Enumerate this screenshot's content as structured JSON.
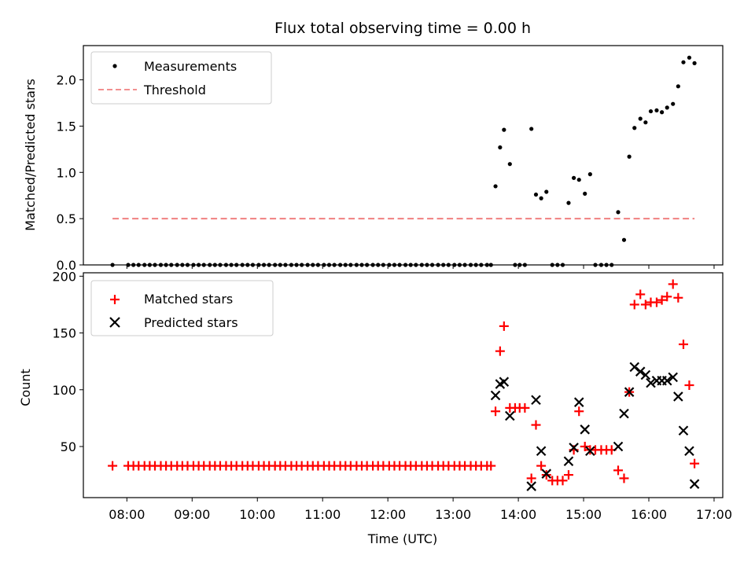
{
  "chart_data": [
    {
      "type": "scatter",
      "title": "Flux total observing time = 0.00 h",
      "xlabel": "",
      "ylabel": "Matched/Predicted stars",
      "xlim": [
        7.333,
        17.133
      ],
      "ylim": [
        0,
        2.37
      ],
      "yticks": [
        0.0,
        0.5,
        1.0,
        1.5,
        2.0
      ],
      "ytick_labels": [
        "0.0",
        "0.5",
        "1.0",
        "1.5",
        "2.0"
      ],
      "legend": {
        "position": "top-left",
        "entries": [
          "Measurements",
          "Threshold"
        ]
      },
      "series": [
        {
          "name": "Measurements",
          "color": "#000000",
          "marker": "dot",
          "points": [
            [
              7.78,
              0
            ],
            [
              8.02,
              0
            ],
            [
              8.1,
              0
            ],
            [
              8.18,
              0
            ],
            [
              8.27,
              0
            ],
            [
              8.35,
              0
            ],
            [
              8.43,
              0
            ],
            [
              8.52,
              0
            ],
            [
              8.6,
              0
            ],
            [
              8.68,
              0
            ],
            [
              8.77,
              0
            ],
            [
              8.85,
              0
            ],
            [
              8.93,
              0
            ],
            [
              9.02,
              0
            ],
            [
              9.1,
              0
            ],
            [
              9.18,
              0
            ],
            [
              9.27,
              0
            ],
            [
              9.35,
              0
            ],
            [
              9.43,
              0
            ],
            [
              9.52,
              0
            ],
            [
              9.6,
              0
            ],
            [
              9.68,
              0
            ],
            [
              9.77,
              0
            ],
            [
              9.85,
              0
            ],
            [
              9.93,
              0
            ],
            [
              10.02,
              0
            ],
            [
              10.1,
              0
            ],
            [
              10.18,
              0
            ],
            [
              10.27,
              0
            ],
            [
              10.35,
              0
            ],
            [
              10.43,
              0
            ],
            [
              10.52,
              0
            ],
            [
              10.6,
              0
            ],
            [
              10.68,
              0
            ],
            [
              10.77,
              0
            ],
            [
              10.85,
              0
            ],
            [
              10.93,
              0
            ],
            [
              11.02,
              0
            ],
            [
              11.1,
              0
            ],
            [
              11.18,
              0
            ],
            [
              11.27,
              0
            ],
            [
              11.35,
              0
            ],
            [
              11.43,
              0
            ],
            [
              11.52,
              0
            ],
            [
              11.6,
              0
            ],
            [
              11.68,
              0
            ],
            [
              11.77,
              0
            ],
            [
              11.85,
              0
            ],
            [
              11.93,
              0
            ],
            [
              12.02,
              0
            ],
            [
              12.1,
              0
            ],
            [
              12.18,
              0
            ],
            [
              12.27,
              0
            ],
            [
              12.35,
              0
            ],
            [
              12.43,
              0
            ],
            [
              12.52,
              0
            ],
            [
              12.6,
              0
            ],
            [
              12.68,
              0
            ],
            [
              12.77,
              0
            ],
            [
              12.85,
              0
            ],
            [
              12.93,
              0
            ],
            [
              13.02,
              0
            ],
            [
              13.1,
              0
            ],
            [
              13.18,
              0
            ],
            [
              13.27,
              0
            ],
            [
              13.35,
              0
            ],
            [
              13.43,
              0
            ],
            [
              13.52,
              0
            ],
            [
              13.58,
              0
            ],
            [
              13.65,
              0.85
            ],
            [
              13.72,
              1.27
            ],
            [
              13.78,
              1.46
            ],
            [
              13.87,
              1.09
            ],
            [
              13.95,
              0
            ],
            [
              14.02,
              0
            ],
            [
              14.1,
              0
            ],
            [
              14.2,
              1.47
            ],
            [
              14.27,
              0.76
            ],
            [
              14.35,
              0.72
            ],
            [
              14.43,
              0.79
            ],
            [
              14.52,
              0
            ],
            [
              14.6,
              0
            ],
            [
              14.68,
              0
            ],
            [
              14.77,
              0.67
            ],
            [
              14.85,
              0.94
            ],
            [
              14.93,
              0.92
            ],
            [
              15.02,
              0.77
            ],
            [
              15.1,
              0.98
            ],
            [
              15.18,
              0
            ],
            [
              15.27,
              0
            ],
            [
              15.35,
              0
            ],
            [
              15.43,
              0
            ],
            [
              15.53,
              0.57
            ],
            [
              15.62,
              0.27
            ],
            [
              15.7,
              1.17
            ],
            [
              15.78,
              1.48
            ],
            [
              15.87,
              1.58
            ],
            [
              15.95,
              1.54
            ],
            [
              16.03,
              1.66
            ],
            [
              16.12,
              1.67
            ],
            [
              16.2,
              1.65
            ],
            [
              16.28,
              1.7
            ],
            [
              16.37,
              1.74
            ],
            [
              16.45,
              1.93
            ],
            [
              16.53,
              2.19
            ],
            [
              16.62,
              2.24
            ],
            [
              16.7,
              2.18
            ]
          ]
        },
        {
          "name": "Threshold",
          "color": "#f08080",
          "style": "dashed",
          "x": [
            7.78,
            16.7
          ],
          "y": [
            0.5,
            0.5
          ]
        }
      ]
    },
    {
      "type": "scatter",
      "title": "",
      "xlabel": "Time (UTC)",
      "ylabel": "Count",
      "xlim": [
        7.333,
        17.133
      ],
      "ylim": [
        5,
        203
      ],
      "yticks": [
        50,
        100,
        150,
        200
      ],
      "ytick_labels": [
        "50",
        "100",
        "150",
        "200"
      ],
      "xticks": [
        8,
        9,
        10,
        11,
        12,
        13,
        14,
        15,
        16,
        17
      ],
      "xtick_labels": [
        "08:00",
        "09:00",
        "10:00",
        "11:00",
        "12:00",
        "13:00",
        "14:00",
        "15:00",
        "16:00",
        "17:00"
      ],
      "legend": {
        "position": "top-left",
        "entries": [
          "Matched stars",
          "Predicted stars"
        ]
      },
      "series": [
        {
          "name": "Matched stars",
          "color": "#ff0000",
          "marker": "plus",
          "points": [
            [
              7.78,
              33
            ],
            [
              8.02,
              33
            ],
            [
              8.1,
              33
            ],
            [
              8.18,
              33
            ],
            [
              8.27,
              33
            ],
            [
              8.35,
              33
            ],
            [
              8.43,
              33
            ],
            [
              8.52,
              33
            ],
            [
              8.6,
              33
            ],
            [
              8.68,
              33
            ],
            [
              8.77,
              33
            ],
            [
              8.85,
              33
            ],
            [
              8.93,
              33
            ],
            [
              9.02,
              33
            ],
            [
              9.1,
              33
            ],
            [
              9.18,
              33
            ],
            [
              9.27,
              33
            ],
            [
              9.35,
              33
            ],
            [
              9.43,
              33
            ],
            [
              9.52,
              33
            ],
            [
              9.6,
              33
            ],
            [
              9.68,
              33
            ],
            [
              9.77,
              33
            ],
            [
              9.85,
              33
            ],
            [
              9.93,
              33
            ],
            [
              10.02,
              33
            ],
            [
              10.1,
              33
            ],
            [
              10.18,
              33
            ],
            [
              10.27,
              33
            ],
            [
              10.35,
              33
            ],
            [
              10.43,
              33
            ],
            [
              10.52,
              33
            ],
            [
              10.6,
              33
            ],
            [
              10.68,
              33
            ],
            [
              10.77,
              33
            ],
            [
              10.85,
              33
            ],
            [
              10.93,
              33
            ],
            [
              11.02,
              33
            ],
            [
              11.1,
              33
            ],
            [
              11.18,
              33
            ],
            [
              11.27,
              33
            ],
            [
              11.35,
              33
            ],
            [
              11.43,
              33
            ],
            [
              11.52,
              33
            ],
            [
              11.6,
              33
            ],
            [
              11.68,
              33
            ],
            [
              11.77,
              33
            ],
            [
              11.85,
              33
            ],
            [
              11.93,
              33
            ],
            [
              12.02,
              33
            ],
            [
              12.1,
              33
            ],
            [
              12.18,
              33
            ],
            [
              12.27,
              33
            ],
            [
              12.35,
              33
            ],
            [
              12.43,
              33
            ],
            [
              12.52,
              33
            ],
            [
              12.6,
              33
            ],
            [
              12.68,
              33
            ],
            [
              12.77,
              33
            ],
            [
              12.85,
              33
            ],
            [
              12.93,
              33
            ],
            [
              13.02,
              33
            ],
            [
              13.1,
              33
            ],
            [
              13.18,
              33
            ],
            [
              13.27,
              33
            ],
            [
              13.35,
              33
            ],
            [
              13.43,
              33
            ],
            [
              13.52,
              33
            ],
            [
              13.58,
              33
            ],
            [
              13.65,
              81
            ],
            [
              13.72,
              134
            ],
            [
              13.78,
              156
            ],
            [
              13.87,
              84
            ],
            [
              13.95,
              84
            ],
            [
              14.02,
              84
            ],
            [
              14.1,
              84
            ],
            [
              14.2,
              22
            ],
            [
              14.27,
              69
            ],
            [
              14.35,
              33
            ],
            [
              14.43,
              25
            ],
            [
              14.52,
              20
            ],
            [
              14.6,
              20
            ],
            [
              14.68,
              20
            ],
            [
              14.77,
              25
            ],
            [
              14.85,
              47
            ],
            [
              14.93,
              81
            ],
            [
              15.02,
              50
            ],
            [
              15.1,
              47
            ],
            [
              15.18,
              47
            ],
            [
              15.27,
              47
            ],
            [
              15.35,
              47
            ],
            [
              15.43,
              47
            ],
            [
              15.53,
              29
            ],
            [
              15.62,
              22
            ],
            [
              15.7,
              98
            ],
            [
              15.78,
              175
            ],
            [
              15.87,
              184
            ],
            [
              15.95,
              175
            ],
            [
              16.03,
              177
            ],
            [
              16.12,
              177
            ],
            [
              16.2,
              179
            ],
            [
              16.28,
              182
            ],
            [
              16.37,
              193
            ],
            [
              16.45,
              181
            ],
            [
              16.53,
              140
            ],
            [
              16.62,
              104
            ],
            [
              16.7,
              35
            ]
          ]
        },
        {
          "name": "Predicted stars",
          "color": "#000000",
          "marker": "cross",
          "points": [
            [
              13.65,
              95
            ],
            [
              13.72,
              105
            ],
            [
              13.78,
              107
            ],
            [
              13.87,
              77
            ],
            [
              14.2,
              15
            ],
            [
              14.27,
              91
            ],
            [
              14.35,
              46
            ],
            [
              14.43,
              26
            ],
            [
              14.77,
              37
            ],
            [
              14.85,
              49
            ],
            [
              14.93,
              89
            ],
            [
              15.02,
              65
            ],
            [
              15.1,
              46
            ],
            [
              15.53,
              50
            ],
            [
              15.62,
              79
            ],
            [
              15.7,
              98
            ],
            [
              15.78,
              120
            ],
            [
              15.87,
              116
            ],
            [
              15.95,
              113
            ],
            [
              16.03,
              106
            ],
            [
              16.12,
              108
            ],
            [
              16.2,
              108
            ],
            [
              16.28,
              108
            ],
            [
              16.37,
              111
            ],
            [
              16.45,
              94
            ],
            [
              16.53,
              64
            ],
            [
              16.62,
              46
            ],
            [
              16.7,
              17
            ]
          ]
        }
      ]
    }
  ]
}
